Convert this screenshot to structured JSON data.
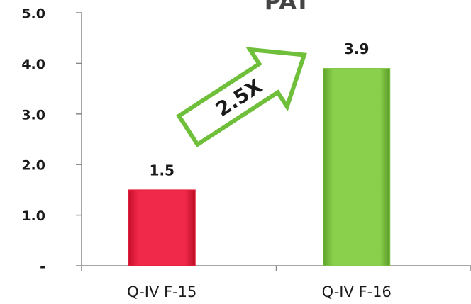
{
  "chart_data": {
    "type": "bar",
    "title": "PAT",
    "categories": [
      "Q-IV F-15",
      "Q-IV F-16"
    ],
    "values": [
      1.5,
      3.9
    ],
    "colors": [
      "#e8203c",
      "#7dc642"
    ],
    "ylim": [
      0,
      5
    ],
    "yticks": [
      {
        "value": 0,
        "label": "-"
      },
      {
        "value": 1,
        "label": "1.0"
      },
      {
        "value": 2,
        "label": "2.0"
      },
      {
        "value": 3,
        "label": "3.0"
      },
      {
        "value": 4,
        "label": "4.0"
      },
      {
        "value": 5,
        "label": "5.0"
      }
    ],
    "annotation": "2.5X"
  }
}
